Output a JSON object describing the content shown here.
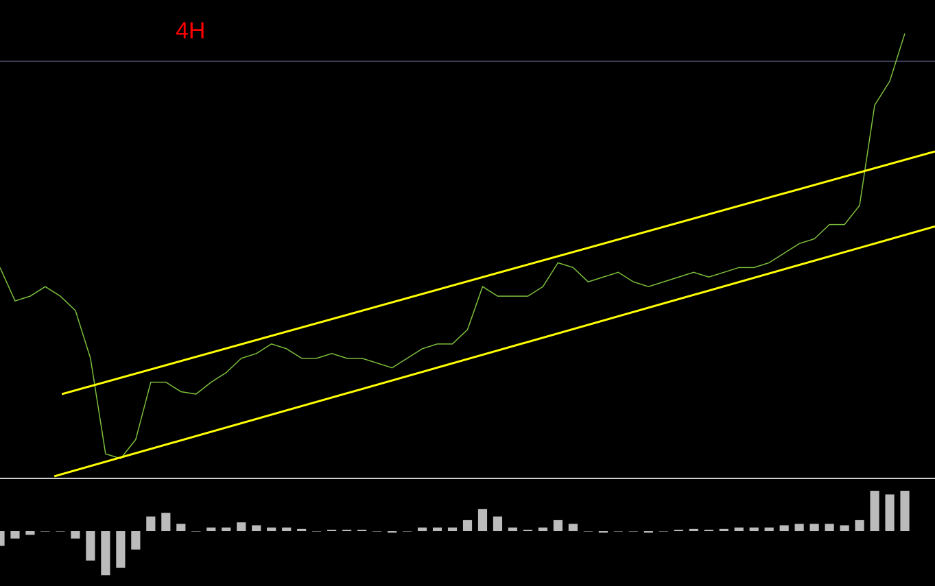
{
  "chart_data": [
    {
      "type": "line",
      "title": "4H",
      "color": "#7cbf3c",
      "xlim": [
        0,
        62
      ],
      "ylim": [
        0,
        100
      ],
      "x": [
        0,
        1,
        2,
        3,
        4,
        5,
        6,
        7,
        8,
        9,
        10,
        11,
        12,
        13,
        14,
        15,
        16,
        17,
        18,
        19,
        20,
        21,
        22,
        23,
        24,
        25,
        26,
        27,
        28,
        29,
        30,
        31,
        32,
        33,
        34,
        35,
        36,
        37,
        38,
        39,
        40,
        41,
        42,
        43,
        44,
        45,
        46,
        47,
        48,
        49,
        50,
        51,
        52,
        53,
        54,
        55,
        56,
        57,
        58,
        59,
        60
      ],
      "values": [
        44,
        37,
        38,
        40,
        38,
        35,
        25,
        5,
        4,
        8,
        20,
        20,
        18,
        17.5,
        20,
        22,
        25,
        26,
        28,
        27,
        25,
        25,
        26,
        25,
        25,
        24,
        23,
        25,
        27,
        28,
        28,
        31,
        40,
        38,
        38,
        38,
        40,
        45,
        44,
        41,
        42,
        43,
        41,
        40,
        41,
        42,
        43,
        42,
        43,
        44,
        44,
        45,
        47,
        49,
        50,
        53,
        53,
        57,
        78,
        83,
        93
      ],
      "channels": [
        {
          "color": "#ffff00",
          "x": [
            4.1,
            62
          ],
          "values": [
            17.5,
            68.3
          ]
        },
        {
          "color": "#ffff00",
          "x": [
            3.6,
            62
          ],
          "values": [
            0.3,
            52.6
          ]
        }
      ],
      "hline": {
        "value": 87.2,
        "color": "#6a6a9a"
      }
    },
    {
      "type": "bar",
      "color": "#bbbbbb",
      "xlim": [
        0,
        62
      ],
      "ylim": [
        -70,
        70
      ],
      "x": [
        0,
        1,
        2,
        3,
        4,
        5,
        6,
        7,
        8,
        9,
        10,
        11,
        12,
        13,
        14,
        15,
        16,
        17,
        18,
        19,
        20,
        21,
        22,
        23,
        24,
        25,
        26,
        27,
        28,
        29,
        30,
        31,
        32,
        33,
        34,
        35,
        36,
        37,
        38,
        39,
        40,
        41,
        42,
        43,
        44,
        45,
        46,
        47,
        48,
        49,
        50,
        51,
        52,
        53,
        54,
        55,
        56,
        57,
        58,
        59,
        60
      ],
      "values": [
        -20,
        -10,
        -5,
        0,
        0,
        -10,
        -40,
        -60,
        -50,
        -25,
        20,
        25,
        10,
        0,
        5,
        5,
        12,
        8,
        5,
        5,
        3,
        0,
        2,
        2,
        2,
        0,
        -2,
        0,
        5,
        5,
        5,
        15,
        30,
        20,
        5,
        2,
        5,
        15,
        10,
        0,
        -2,
        0,
        0,
        -2,
        0,
        2,
        3,
        2,
        3,
        5,
        5,
        5,
        8,
        10,
        10,
        10,
        8,
        15,
        55,
        50,
        55
      ]
    }
  ]
}
